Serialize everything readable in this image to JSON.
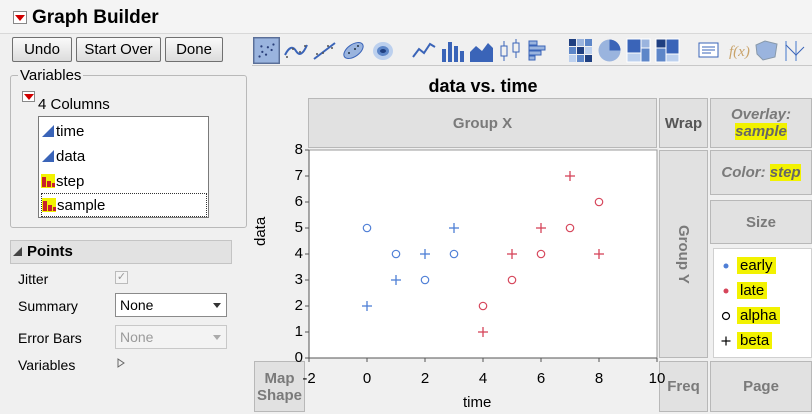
{
  "window": {
    "title": "Graph Builder"
  },
  "toolbar": {
    "undo": "Undo",
    "start_over": "Start Over",
    "done": "Done"
  },
  "graph_icons": [
    "points-icon",
    "smoother-icon",
    "line-of-fit-icon",
    "ellipse-icon",
    "contour-icon",
    "line-icon",
    "bar-icon",
    "area-icon",
    "box-plot-icon",
    "histogram-icon",
    "heatmap-icon",
    "pie-icon",
    "treemap-icon",
    "mosaic-icon",
    "caption-box-icon",
    "formula-icon",
    "map-shapes-icon",
    "parallel-icon"
  ],
  "variables": {
    "label": "Variables",
    "columns_label": "4 Columns",
    "columns": [
      {
        "name": "time",
        "type": "continuous"
      },
      {
        "name": "data",
        "type": "continuous"
      },
      {
        "name": "step",
        "type": "nominal"
      },
      {
        "name": "sample",
        "type": "nominal"
      }
    ]
  },
  "points": {
    "header": "Points",
    "jitter_label": "Jitter",
    "summary_label": "Summary",
    "summary_value": "None",
    "error_bars_label": "Error Bars",
    "error_bars_value": "None",
    "variables_label": "Variables"
  },
  "zones": {
    "group_x": "Group X",
    "group_y": "Group Y",
    "wrap": "Wrap",
    "overlay_label": "Overlay:",
    "overlay_value": "sample",
    "color_label": "Color:",
    "color_value": "step",
    "size": "Size",
    "map_shape": "Map Shape",
    "freq": "Freq",
    "page": "Page"
  },
  "legend": [
    {
      "label": "early",
      "marker": "dot",
      "color": "#4f7fd6"
    },
    {
      "label": "late",
      "marker": "dot",
      "color": "#d6455a"
    },
    {
      "label": "alpha",
      "marker": "circle",
      "color": "#000000"
    },
    {
      "label": "beta",
      "marker": "plus",
      "color": "#000000"
    }
  ],
  "chart_data": {
    "type": "scatter",
    "title": "data vs. time",
    "xlabel": "time",
    "ylabel": "data",
    "xlim": [
      -2,
      10
    ],
    "ylim": [
      0,
      8
    ],
    "xticks": [
      -2,
      0,
      2,
      4,
      6,
      8,
      10
    ],
    "yticks": [
      0,
      1,
      2,
      3,
      4,
      5,
      6,
      7,
      8
    ],
    "colors": {
      "early": "#4f7fd6",
      "late": "#d6455a"
    },
    "points": [
      {
        "x": 0,
        "y": 5,
        "step": "early",
        "sample": "alpha"
      },
      {
        "x": 1,
        "y": 4,
        "step": "early",
        "sample": "alpha"
      },
      {
        "x": 2,
        "y": 3,
        "step": "early",
        "sample": "alpha"
      },
      {
        "x": 3,
        "y": 4,
        "step": "early",
        "sample": "alpha"
      },
      {
        "x": 0,
        "y": 2,
        "step": "early",
        "sample": "beta"
      },
      {
        "x": 1,
        "y": 3,
        "step": "early",
        "sample": "beta"
      },
      {
        "x": 2,
        "y": 4,
        "step": "early",
        "sample": "beta"
      },
      {
        "x": 3,
        "y": 5,
        "step": "early",
        "sample": "beta"
      },
      {
        "x": 4,
        "y": 2,
        "step": "late",
        "sample": "alpha"
      },
      {
        "x": 5,
        "y": 3,
        "step": "late",
        "sample": "alpha"
      },
      {
        "x": 6,
        "y": 4,
        "step": "late",
        "sample": "alpha"
      },
      {
        "x": 7,
        "y": 5,
        "step": "late",
        "sample": "alpha"
      },
      {
        "x": 8,
        "y": 6,
        "step": "late",
        "sample": "alpha"
      },
      {
        "x": 4,
        "y": 1,
        "step": "late",
        "sample": "beta"
      },
      {
        "x": 5,
        "y": 4,
        "step": "late",
        "sample": "beta"
      },
      {
        "x": 6,
        "y": 5,
        "step": "late",
        "sample": "beta"
      },
      {
        "x": 7,
        "y": 7,
        "step": "late",
        "sample": "beta"
      },
      {
        "x": 8,
        "y": 4,
        "step": "late",
        "sample": "beta"
      }
    ]
  }
}
